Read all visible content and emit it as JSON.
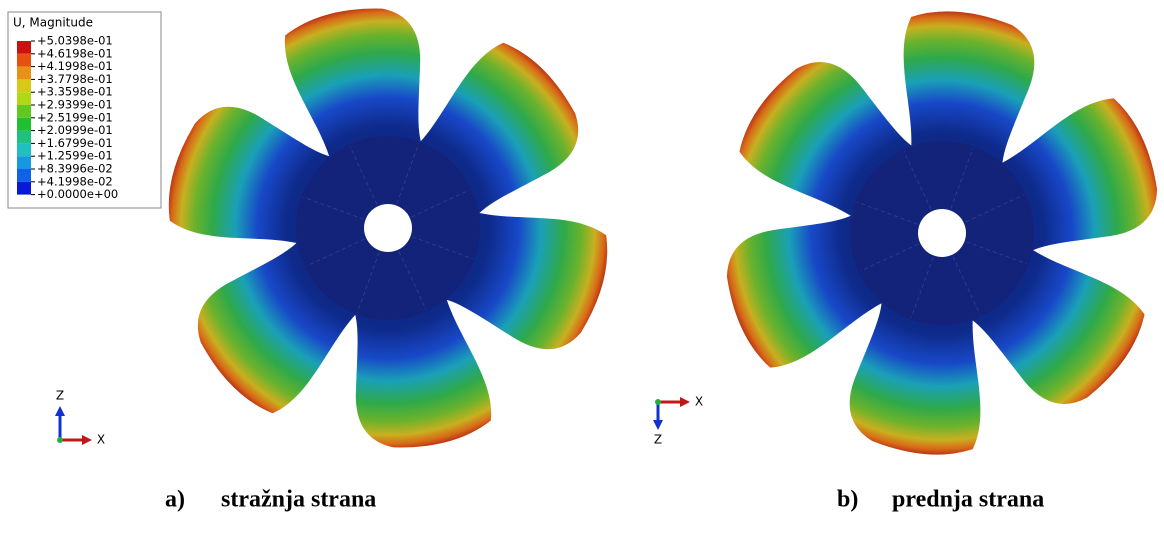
{
  "legend": {
    "title": "U, Magnitude",
    "labels": [
      "+5.0398e-01",
      "+4.6198e-01",
      "+4.1998e-01",
      "+3.7798e-01",
      "+3.3598e-01",
      "+2.9399e-01",
      "+2.5199e-01",
      "+2.0999e-01",
      "+1.6799e-01",
      "+1.2599e-01",
      "+8.3996e-02",
      "+4.1998e-02",
      "+0.0000e+00"
    ]
  },
  "figures": [
    {
      "axes": {
        "vertical": "Z",
        "horizontal": "X"
      },
      "caption": {
        "letter": "a)",
        "text": "stražnja strana"
      }
    },
    {
      "axes": {
        "vertical": "Z",
        "horizontal": "X"
      },
      "caption": {
        "letter": "b)",
        "text": "prednja strana"
      }
    }
  ]
}
